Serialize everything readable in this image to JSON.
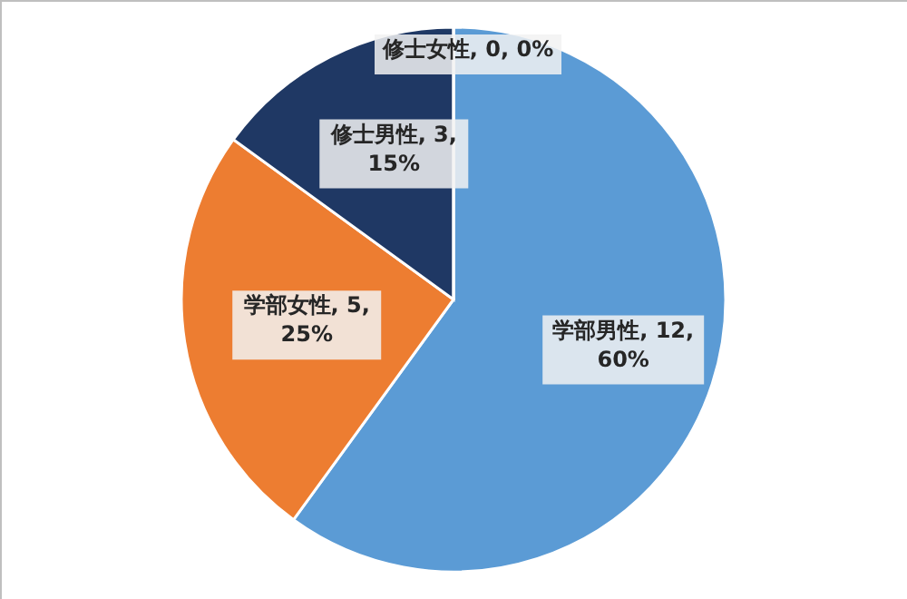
{
  "chart_data": {
    "type": "pie",
    "categories": [
      "学部男性",
      "学部女性",
      "修士男性",
      "修士女性"
    ],
    "values": [
      12,
      5,
      3,
      0
    ],
    "colors": [
      "#5b9bd5",
      "#ed7d31",
      "#1f3864",
      "#a5a5a5"
    ],
    "value_labels": [
      ", 12, 60%",
      ", 5, 25%",
      ", 3, 15%",
      ", 0, 0%"
    ]
  }
}
